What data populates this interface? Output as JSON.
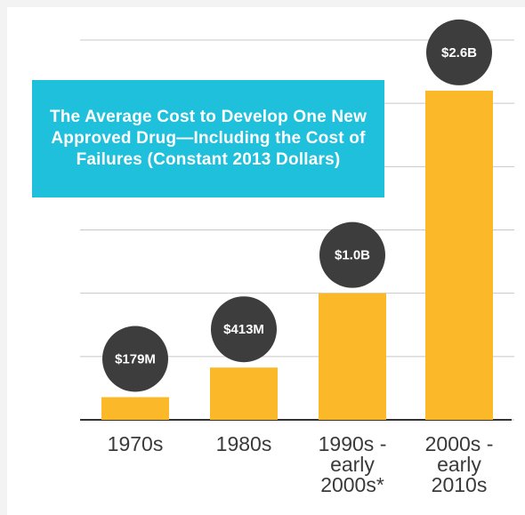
{
  "chart_data": {
    "type": "bar",
    "title": "The Average Cost to Develop One New Approved Drug—Including the Cost of Failures (Constant 2013 Dollars)",
    "categories": [
      "1970s",
      "1980s",
      "1990s - early 2000s*",
      "2000s - early 2010s"
    ],
    "values": [
      179,
      413,
      1000,
      2600
    ],
    "value_labels": [
      "$179M",
      "$413M",
      "$1.0B",
      "$2.6B"
    ],
    "color": "#fbb829",
    "label_color": "#3d3d3d",
    "ylim": [
      0,
      3000
    ],
    "yticks": [
      0,
      500,
      1000,
      1500,
      2000,
      2500,
      3000
    ],
    "grid": true
  }
}
